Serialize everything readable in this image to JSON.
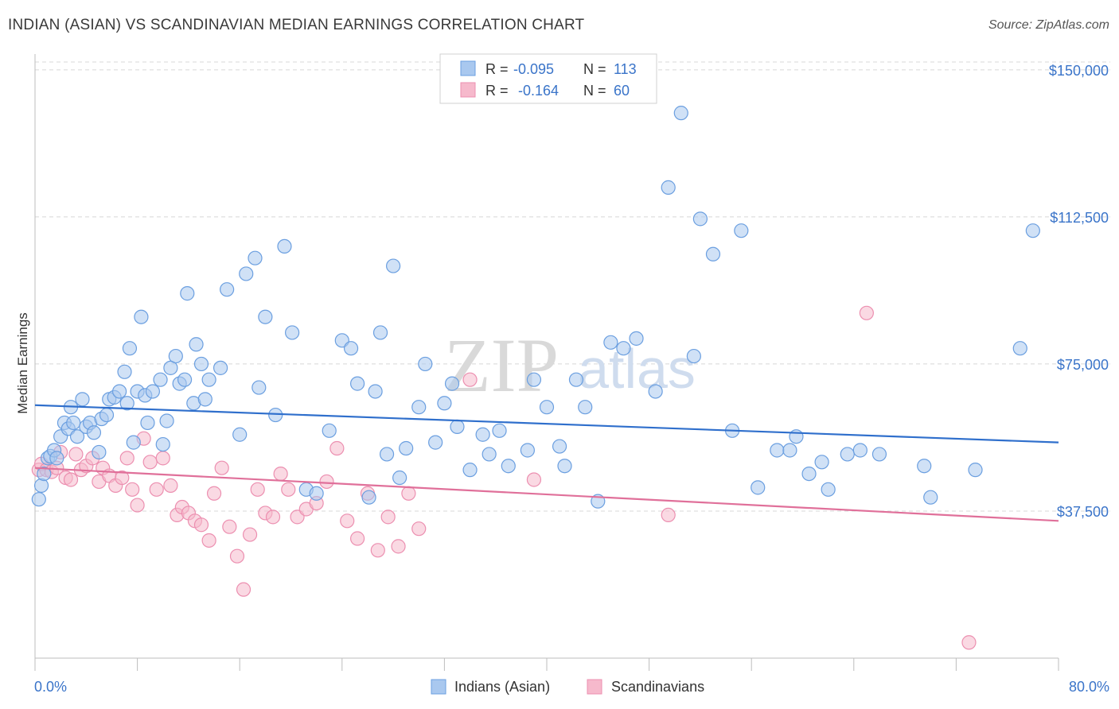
{
  "title": "INDIAN (ASIAN) VS SCANDINAVIAN MEDIAN EARNINGS CORRELATION CHART",
  "source": "Source: ZipAtlas.com",
  "watermark": {
    "part1": "ZIP",
    "part2": "atlas"
  },
  "colors": {
    "blue_fill": "#a9c8ef",
    "blue_stroke": "#6b9fe0",
    "blue_line": "#2f6fcc",
    "pink_fill": "#f6b9cc",
    "pink_stroke": "#ec8fb0",
    "pink_line": "#e0709a",
    "axis_label": "#3a74c9",
    "grid": "#d8d8d8"
  },
  "legend": {
    "rows": [
      {
        "r_label": "R =",
        "r_value": "-0.095",
        "n_label": "N =",
        "n_value": "113"
      },
      {
        "r_label": "R =",
        "r_value": "-0.164",
        "n_label": "N =",
        "n_value": "60"
      }
    ]
  },
  "bottom_legend": [
    "Indians (Asian)",
    "Scandinavians"
  ],
  "chart_data": {
    "type": "scatter",
    "xlabel": "",
    "ylabel": "Median Earnings",
    "xlim": [
      0,
      80
    ],
    "ylim": [
      0,
      152000
    ],
    "x_tick_labels": [
      "0.0%",
      "80.0%"
    ],
    "y_ticks": [
      37500,
      75000,
      112500,
      150000
    ],
    "y_tick_labels": [
      "$37,500",
      "$75,000",
      "$112,500",
      "$150,000"
    ],
    "grid": true,
    "legend_position": "top-center",
    "series": [
      {
        "name": "Indians (Asian)",
        "trend": [
          [
            0,
            64500
          ],
          [
            80,
            55000
          ]
        ],
        "points": [
          [
            0.3,
            40500
          ],
          [
            0.5,
            44000
          ],
          [
            0.7,
            47000
          ],
          [
            1.0,
            51000
          ],
          [
            1.2,
            51500
          ],
          [
            1.5,
            53000
          ],
          [
            1.7,
            51000
          ],
          [
            2.0,
            56500
          ],
          [
            2.3,
            60000
          ],
          [
            2.6,
            58500
          ],
          [
            2.8,
            64000
          ],
          [
            3.0,
            60000
          ],
          [
            3.3,
            56500
          ],
          [
            3.7,
            66000
          ],
          [
            4.0,
            59000
          ],
          [
            4.3,
            60000
          ],
          [
            4.6,
            57500
          ],
          [
            5.0,
            52500
          ],
          [
            5.2,
            61000
          ],
          [
            5.6,
            62000
          ],
          [
            5.8,
            66000
          ],
          [
            6.2,
            66500
          ],
          [
            6.6,
            68000
          ],
          [
            7.0,
            73000
          ],
          [
            7.2,
            65000
          ],
          [
            7.4,
            79000
          ],
          [
            7.7,
            55000
          ],
          [
            8.0,
            68000
          ],
          [
            8.3,
            87000
          ],
          [
            8.6,
            67000
          ],
          [
            8.8,
            60000
          ],
          [
            9.2,
            68000
          ],
          [
            9.8,
            71000
          ],
          [
            10.0,
            54500
          ],
          [
            10.3,
            60500
          ],
          [
            10.6,
            74000
          ],
          [
            11.0,
            77000
          ],
          [
            11.3,
            70000
          ],
          [
            11.7,
            71000
          ],
          [
            11.9,
            93000
          ],
          [
            12.4,
            65000
          ],
          [
            12.6,
            80000
          ],
          [
            13.0,
            75000
          ],
          [
            13.3,
            66000
          ],
          [
            13.6,
            71000
          ],
          [
            14.5,
            74000
          ],
          [
            15.0,
            94000
          ],
          [
            16.0,
            57000
          ],
          [
            16.5,
            98000
          ],
          [
            17.2,
            102000
          ],
          [
            17.5,
            69000
          ],
          [
            18.0,
            87000
          ],
          [
            18.8,
            62000
          ],
          [
            19.5,
            105000
          ],
          [
            20.1,
            83000
          ],
          [
            21.2,
            43000
          ],
          [
            22.0,
            42000
          ],
          [
            23.0,
            58000
          ],
          [
            24.0,
            81000
          ],
          [
            24.7,
            79000
          ],
          [
            25.2,
            70000
          ],
          [
            26.1,
            41000
          ],
          [
            26.6,
            68000
          ],
          [
            27.0,
            83000
          ],
          [
            27.5,
            52000
          ],
          [
            28.0,
            100000
          ],
          [
            28.5,
            46000
          ],
          [
            29.0,
            53500
          ],
          [
            30.0,
            64000
          ],
          [
            30.5,
            75000
          ],
          [
            31.3,
            55000
          ],
          [
            32.0,
            65000
          ],
          [
            32.6,
            70000
          ],
          [
            33.0,
            59000
          ],
          [
            34.0,
            48000
          ],
          [
            35.0,
            57000
          ],
          [
            35.5,
            52000
          ],
          [
            36.3,
            58000
          ],
          [
            37.0,
            49000
          ],
          [
            38.5,
            53000
          ],
          [
            39.0,
            71000
          ],
          [
            40.0,
            64000
          ],
          [
            41.0,
            54000
          ],
          [
            41.4,
            49000
          ],
          [
            42.3,
            71000
          ],
          [
            43.0,
            64000
          ],
          [
            44.0,
            40000
          ],
          [
            45.0,
            80500
          ],
          [
            46.0,
            79000
          ],
          [
            47.0,
            81500
          ],
          [
            48.5,
            68000
          ],
          [
            49.5,
            120000
          ],
          [
            50.5,
            139000
          ],
          [
            51.5,
            77000
          ],
          [
            52.0,
            112000
          ],
          [
            53.0,
            103000
          ],
          [
            54.5,
            58000
          ],
          [
            55.2,
            109000
          ],
          [
            56.5,
            43500
          ],
          [
            58.0,
            53000
          ],
          [
            59.0,
            53000
          ],
          [
            59.5,
            56500
          ],
          [
            60.5,
            47000
          ],
          [
            61.5,
            50000
          ],
          [
            62.0,
            43000
          ],
          [
            63.5,
            52000
          ],
          [
            64.5,
            53000
          ],
          [
            66.0,
            52000
          ],
          [
            69.5,
            49000
          ],
          [
            70.0,
            41000
          ],
          [
            73.5,
            48000
          ],
          [
            77.0,
            79000
          ],
          [
            78.0,
            109000
          ]
        ]
      },
      {
        "name": "Scandinavians",
        "trend": [
          [
            0,
            48500
          ],
          [
            80,
            35000
          ]
        ],
        "points": [
          [
            0.3,
            48000
          ],
          [
            0.5,
            49500
          ],
          [
            0.9,
            48000
          ],
          [
            1.3,
            47500
          ],
          [
            1.7,
            48500
          ],
          [
            2.0,
            52500
          ],
          [
            2.4,
            46000
          ],
          [
            2.8,
            45500
          ],
          [
            3.2,
            52000
          ],
          [
            3.6,
            48000
          ],
          [
            4.0,
            49000
          ],
          [
            4.5,
            51000
          ],
          [
            5.0,
            45000
          ],
          [
            5.3,
            48500
          ],
          [
            5.8,
            46500
          ],
          [
            6.3,
            44000
          ],
          [
            6.8,
            46000
          ],
          [
            7.2,
            51000
          ],
          [
            7.6,
            43000
          ],
          [
            8.0,
            39000
          ],
          [
            8.5,
            56000
          ],
          [
            9.0,
            50000
          ],
          [
            9.5,
            43000
          ],
          [
            10.0,
            51000
          ],
          [
            10.6,
            44000
          ],
          [
            11.1,
            36500
          ],
          [
            11.5,
            38500
          ],
          [
            12.0,
            37000
          ],
          [
            12.5,
            35000
          ],
          [
            13.0,
            34000
          ],
          [
            13.6,
            30000
          ],
          [
            14.0,
            42000
          ],
          [
            14.6,
            48500
          ],
          [
            15.2,
            33500
          ],
          [
            15.8,
            26000
          ],
          [
            16.3,
            17500
          ],
          [
            16.8,
            31500
          ],
          [
            17.4,
            43000
          ],
          [
            18.0,
            37000
          ],
          [
            18.6,
            36000
          ],
          [
            19.2,
            47000
          ],
          [
            19.8,
            43000
          ],
          [
            20.5,
            36000
          ],
          [
            21.2,
            38000
          ],
          [
            22.0,
            39500
          ],
          [
            22.8,
            45000
          ],
          [
            23.6,
            53500
          ],
          [
            24.4,
            35000
          ],
          [
            25.2,
            30500
          ],
          [
            26.0,
            42000
          ],
          [
            26.8,
            27500
          ],
          [
            27.6,
            36000
          ],
          [
            28.4,
            28500
          ],
          [
            29.2,
            42000
          ],
          [
            30.0,
            33000
          ],
          [
            34.0,
            71000
          ],
          [
            39.0,
            45500
          ],
          [
            49.5,
            36500
          ],
          [
            65.0,
            88000
          ],
          [
            73.0,
            4000
          ]
        ]
      }
    ]
  }
}
